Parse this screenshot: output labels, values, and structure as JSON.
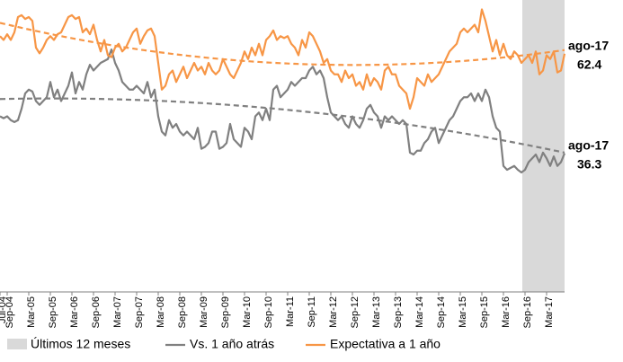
{
  "chart_data": {
    "type": "line",
    "categories": [
      "Jul-04",
      null,
      "Sep-04",
      null,
      null,
      null,
      null,
      null,
      "Mar-05",
      null,
      null,
      null,
      null,
      null,
      "Sep-05",
      null,
      null,
      null,
      null,
      null,
      "Mar-06",
      null,
      null,
      null,
      null,
      null,
      "Sep-06",
      null,
      null,
      null,
      null,
      null,
      "Mar-07",
      null,
      null,
      null,
      null,
      null,
      "Sep-07",
      null,
      null,
      null,
      null,
      null,
      "Mar-08",
      null,
      null,
      null,
      null,
      null,
      "Sep-08",
      null,
      null,
      null,
      null,
      null,
      "Mar-09",
      null,
      null,
      null,
      null,
      null,
      "Sep-09",
      null,
      null,
      null,
      null,
      null,
      "Mar-10",
      null,
      null,
      null,
      null,
      null,
      "Sep-10",
      null,
      null,
      null,
      null,
      null,
      "Mar-11",
      null,
      null,
      null,
      null,
      null,
      "Sep-11",
      null,
      null,
      null,
      null,
      null,
      "Mar-12",
      null,
      null,
      null,
      null,
      null,
      "Sep-12",
      null,
      null,
      null,
      null,
      null,
      "Mar-13",
      null,
      null,
      null,
      null,
      null,
      "Sep-13",
      null,
      null,
      null,
      null,
      null,
      "Mar-14",
      null,
      null,
      null,
      null,
      null,
      "Sep-14",
      null,
      null,
      null,
      null,
      null,
      "Mar-15",
      null,
      null,
      null,
      null,
      null,
      "Sep-15",
      null,
      null,
      null,
      null,
      null,
      "Mar-16",
      null,
      null,
      null,
      null,
      null,
      "Sep-16",
      null,
      null,
      null,
      null,
      null,
      "Mar-17",
      null,
      null,
      null,
      null,
      null
    ],
    "series": [
      {
        "name": "Vs. 1 año atrás",
        "color": "#808080",
        "trendline": "poly2",
        "end_label": "ago-17",
        "values": [
          46,
          45.5,
          46,
          45,
          44.5,
          45,
          48,
          52,
          53,
          52.5,
          50,
          49,
          50,
          51,
          55,
          51,
          53,
          50,
          52,
          54,
          57.5,
          52,
          55,
          53,
          57,
          59.5,
          58,
          59,
          60,
          60.5,
          61,
          63.5,
          60,
          58,
          55,
          54,
          53,
          53,
          54,
          53,
          52,
          55,
          51,
          53,
          46,
          42,
          41,
          45,
          43,
          44,
          42,
          41,
          42,
          41,
          40,
          43,
          37.5,
          38,
          39,
          42,
          42,
          37.5,
          38,
          39,
          44,
          40,
          39,
          38,
          43,
          42,
          40,
          46,
          47,
          45,
          48,
          45,
          53,
          54,
          51,
          52,
          53,
          55,
          54,
          55,
          56,
          56,
          58,
          59,
          57,
          58,
          56,
          51,
          47,
          46,
          45,
          46,
          44,
          43,
          46,
          44,
          43,
          45,
          48,
          49,
          47,
          46,
          43,
          46,
          45,
          46,
          45,
          44,
          45,
          44,
          36.5,
          36,
          37,
          37,
          39,
          40,
          42,
          43,
          39,
          41,
          43,
          45,
          46,
          48,
          50,
          51,
          51,
          52,
          50,
          52,
          50,
          53,
          51,
          46,
          43,
          42,
          33,
          32,
          32.5,
          33,
          32,
          31.3,
          32,
          34,
          35,
          36,
          34,
          36.5,
          35,
          33,
          35.5,
          33,
          34,
          36.3
        ]
      },
      {
        "name": "Expectativa a 1 año",
        "color": "#f79646",
        "trendline": "poly2",
        "end_label": "ago-17",
        "values": [
          67,
          66,
          67.5,
          66,
          68,
          72,
          72.5,
          71.5,
          72,
          71,
          64,
          62.5,
          64,
          66,
          67,
          66,
          67.5,
          68,
          70,
          72,
          72.5,
          71.5,
          72,
          68,
          69,
          67.5,
          70,
          66,
          63,
          66,
          62,
          61.5,
          64,
          65,
          63,
          64,
          66,
          68,
          69,
          65,
          67,
          68.5,
          69,
          67,
          60,
          53,
          54,
          57,
          58,
          55,
          57,
          59,
          56,
          58,
          60,
          58,
          59,
          57,
          60,
          58,
          57,
          58,
          61,
          59,
          57,
          56,
          58,
          60,
          63,
          61,
          64,
          62,
          65,
          62,
          66,
          67,
          68.5,
          66,
          67,
          66.5,
          67,
          65,
          64,
          62,
          66,
          64,
          68,
          67,
          65,
          63,
          60,
          61,
          58,
          57,
          57,
          55,
          58,
          56,
          57,
          54,
          55,
          53,
          57,
          54,
          56,
          55,
          53,
          58,
          59,
          57,
          57,
          54,
          53,
          52,
          48,
          51,
          56,
          55,
          54,
          57,
          55,
          56,
          57,
          59,
          61,
          63,
          64,
          65,
          68,
          69,
          68,
          69,
          70,
          68,
          74,
          71,
          67,
          63,
          66,
          62,
          65,
          62,
          61,
          63,
          62,
          60,
          61,
          62,
          60,
          63,
          57,
          58,
          62,
          61,
          63,
          57.5,
          58,
          62.4
        ]
      }
    ],
    "highlight": {
      "name": "Últimos 12 meses",
      "color": "#d9d9d9",
      "start": "Sep-16"
    },
    "ylim": [
      0,
      75
    ]
  }
}
